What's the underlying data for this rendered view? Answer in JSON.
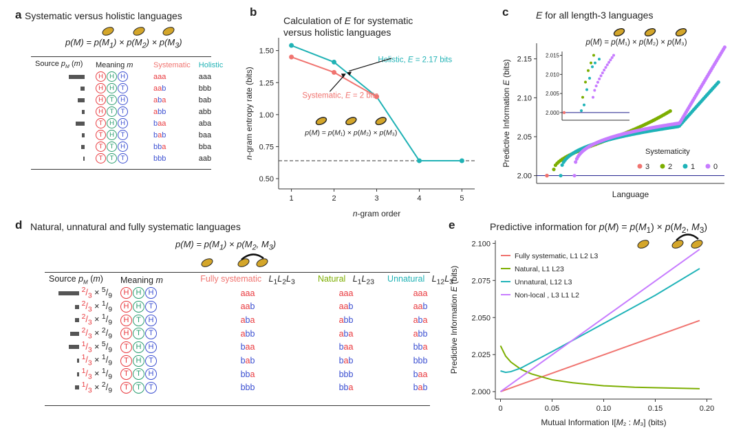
{
  "panel_a": {
    "label": "a",
    "title": "Systematic versus holistic languages",
    "formula": "p(M) = p(M1) × p(M2) × p(M3)",
    "headers": {
      "source": "Source p_M (m)",
      "meaning": "Meaning m",
      "systematic": "Systematic",
      "holistic": "Holistic"
    },
    "rows": [
      {
        "bar": 0.9,
        "meaning": [
          "H",
          "H",
          "H"
        ],
        "sys": [
          "a",
          "a",
          "a"
        ],
        "hol": "aaa"
      },
      {
        "bar": 0.25,
        "meaning": [
          "H",
          "H",
          "T"
        ],
        "sys": [
          "a",
          "a",
          "b"
        ],
        "hol": "bbb"
      },
      {
        "bar": 0.4,
        "meaning": [
          "H",
          "T",
          "H"
        ],
        "sys": [
          "a",
          "b",
          "a"
        ],
        "hol": "bab"
      },
      {
        "bar": 0.15,
        "meaning": [
          "H",
          "T",
          "T"
        ],
        "sys": [
          "a",
          "b",
          "b"
        ],
        "hol": "abb"
      },
      {
        "bar": 0.5,
        "meaning": [
          "T",
          "H",
          "H"
        ],
        "sys": [
          "b",
          "a",
          "a"
        ],
        "hol": "aba"
      },
      {
        "bar": 0.15,
        "meaning": [
          "T",
          "H",
          "T"
        ],
        "sys": [
          "b",
          "a",
          "b"
        ],
        "hol": "baa"
      },
      {
        "bar": 0.2,
        "meaning": [
          "T",
          "T",
          "H"
        ],
        "sys": [
          "b",
          "b",
          "a"
        ],
        "hol": "bba"
      },
      {
        "bar": 0.05,
        "meaning": [
          "T",
          "T",
          "T"
        ],
        "sys": [
          "b",
          "b",
          "b"
        ],
        "hol": "aab"
      }
    ]
  },
  "panel_b": {
    "label": "b",
    "title_line1": "Calculation of E for systematic",
    "title_line2": "versus holistic languages",
    "annot_holistic": "Holistic, E = 2.17 bits",
    "annot_systematic": "Systematic, E = 2 bits",
    "formula": "p(M) = p(M1) × p(M2) × p(M3)"
  },
  "panel_c": {
    "label": "c",
    "title": "E for all length-3 languages",
    "formula": "p(M) = p(M1) × p(M2) × p(M3)",
    "legend_title": "Systematicity"
  },
  "panel_d": {
    "label": "d",
    "title": "Natural, unnatural and fully systematic languages",
    "formula": "p(M) = p(M1) × p(M2, M3)",
    "headers": {
      "source": "Source p_M (m)",
      "meaning": "Meaning m",
      "full": "Fully systematic",
      "full_l": "L1L2L3",
      "nat": "Natural",
      "nat_l": "L1L23",
      "unnat": "Unnatural",
      "unnat_l": "L12L3"
    },
    "rows": [
      {
        "bar": 1.0,
        "p1": "2",
        "p2": "5",
        "meaning": [
          "H",
          "H",
          "H"
        ],
        "full": [
          "a",
          "a",
          "a"
        ],
        "nat": [
          "a",
          "a",
          "a"
        ],
        "unnat": [
          "a",
          "a",
          "a"
        ]
      },
      {
        "bar": 0.2,
        "p1": "2",
        "p2": "1",
        "meaning": [
          "H",
          "H",
          "T"
        ],
        "full": [
          "a",
          "a",
          "b"
        ],
        "nat": [
          "a",
          "a",
          "b"
        ],
        "unnat": [
          "a",
          "a",
          "b"
        ]
      },
      {
        "bar": 0.2,
        "p1": "2",
        "p2": "1",
        "meaning": [
          "H",
          "T",
          "H"
        ],
        "full": [
          "a",
          "b",
          "a"
        ],
        "nat": [
          "a",
          "b",
          "b"
        ],
        "unnat": [
          "a",
          "b",
          "a"
        ]
      },
      {
        "bar": 0.45,
        "p1": "2",
        "p2": "2",
        "meaning": [
          "H",
          "T",
          "T"
        ],
        "full": [
          "a",
          "b",
          "b"
        ],
        "nat": [
          "a",
          "b",
          "a"
        ],
        "unnat": [
          "a",
          "b",
          "b"
        ]
      },
      {
        "bar": 0.5,
        "p1": "1",
        "p2": "5",
        "meaning": [
          "T",
          "H",
          "H"
        ],
        "full": [
          "b",
          "a",
          "a"
        ],
        "nat": [
          "b",
          "a",
          "a"
        ],
        "unnat": [
          "b",
          "b",
          "a"
        ]
      },
      {
        "bar": 0.1,
        "p1": "1",
        "p2": "1",
        "meaning": [
          "T",
          "H",
          "T"
        ],
        "full": [
          "b",
          "a",
          "b"
        ],
        "nat": [
          "b",
          "a",
          "b"
        ],
        "unnat": [
          "b",
          "b",
          "b"
        ]
      },
      {
        "bar": 0.1,
        "p1": "1",
        "p2": "1",
        "meaning": [
          "T",
          "T",
          "H"
        ],
        "full": [
          "b",
          "b",
          "a"
        ],
        "nat": [
          "b",
          "b",
          "b"
        ],
        "unnat": [
          "b",
          "a",
          "a"
        ]
      },
      {
        "bar": 0.22,
        "p1": "1",
        "p2": "2",
        "meaning": [
          "T",
          "T",
          "T"
        ],
        "full": [
          "b",
          "b",
          "b"
        ],
        "nat": [
          "b",
          "b",
          "a"
        ],
        "unnat": [
          "b",
          "a",
          "b"
        ]
      }
    ]
  },
  "panel_e": {
    "label": "e",
    "title": "Predictive information for p(M) = p(M1) × p(M2, M3)"
  },
  "chart_data": [
    {
      "panel": "b",
      "type": "line",
      "xlabel": "n-gram order",
      "ylabel": "n-gram entropy rate (bits)",
      "xlim": [
        0.7,
        5.3
      ],
      "ylim": [
        0.42,
        1.6
      ],
      "xticks": [
        1,
        2,
        3,
        4,
        5
      ],
      "yticks": [
        0.5,
        0.75,
        1.0,
        1.25,
        1.5
      ],
      "baseline": 0.64,
      "series": [
        {
          "name": "Holistic",
          "color": "#20b2b5",
          "x": [
            1,
            2,
            3,
            4,
            5
          ],
          "y": [
            1.54,
            1.41,
            1.14,
            0.64,
            0.64
          ]
        },
        {
          "name": "Systematic",
          "color": "#f07470",
          "x": [
            1,
            2,
            3
          ],
          "y": [
            1.45,
            1.33,
            1.14
          ]
        }
      ]
    },
    {
      "panel": "c",
      "type": "scatter",
      "xlabel": "Language",
      "ylabel": "Predictive Information E (bits)",
      "ylim": [
        1.99,
        2.17
      ],
      "yticks": [
        2.0,
        2.05,
        2.1,
        2.15
      ],
      "legend_position": "right",
      "series": [
        {
          "name": "3",
          "color": "#f07470",
          "y_start": 2.0,
          "y_end": 2.0
        },
        {
          "name": "2",
          "color": "#7cae00",
          "y_start": 2.01,
          "y_end": 2.09
        },
        {
          "name": "1",
          "color": "#1fb3b8",
          "y_start": 2.0,
          "y_end": 2.15
        },
        {
          "name": "0",
          "color": "#c77cff",
          "y_start": 2.0,
          "y_end": 2.17
        }
      ],
      "inset": {
        "ylim": [
          1.998,
          2.016
        ],
        "yticks": [
          2.0,
          2.005,
          2.01,
          2.015
        ]
      }
    },
    {
      "panel": "e",
      "type": "line",
      "xlabel": "Mutual Information I[M2 : M3] (bits)",
      "ylabel": "Predictive Information E (bits)",
      "xlim": [
        -0.005,
        0.205
      ],
      "ylim": [
        1.995,
        2.102
      ],
      "xticks": [
        0,
        0.05,
        0.1,
        0.15,
        0.2
      ],
      "yticks": [
        2.0,
        2.025,
        2.05,
        2.075,
        2.1
      ],
      "series": [
        {
          "name": "Fully systematic, L1 L2 L3",
          "color": "#f07470",
          "x": [
            0,
            0.193
          ],
          "y": [
            2.0,
            2.048
          ]
        },
        {
          "name": "Natural, L1 L23",
          "color": "#7cae00",
          "x": [
            0,
            0.005,
            0.01,
            0.02,
            0.03,
            0.05,
            0.07,
            0.1,
            0.13,
            0.16,
            0.193
          ],
          "y": [
            2.031,
            2.024,
            2.02,
            2.015,
            2.012,
            2.008,
            2.006,
            2.004,
            2.003,
            2.0025,
            2.002
          ]
        },
        {
          "name": "Unnatural, L12 L3",
          "color": "#1fb3b8",
          "x": [
            0,
            0.005,
            0.01,
            0.02,
            0.05,
            0.1,
            0.15,
            0.193
          ],
          "y": [
            2.014,
            2.013,
            2.0135,
            2.016,
            2.027,
            2.046,
            2.065,
            2.083
          ]
        },
        {
          "name": "Non-local , L3 L1 L2",
          "color": "#c77cff",
          "x": [
            0,
            0.193
          ],
          "y": [
            2.0,
            2.096
          ]
        }
      ]
    }
  ]
}
